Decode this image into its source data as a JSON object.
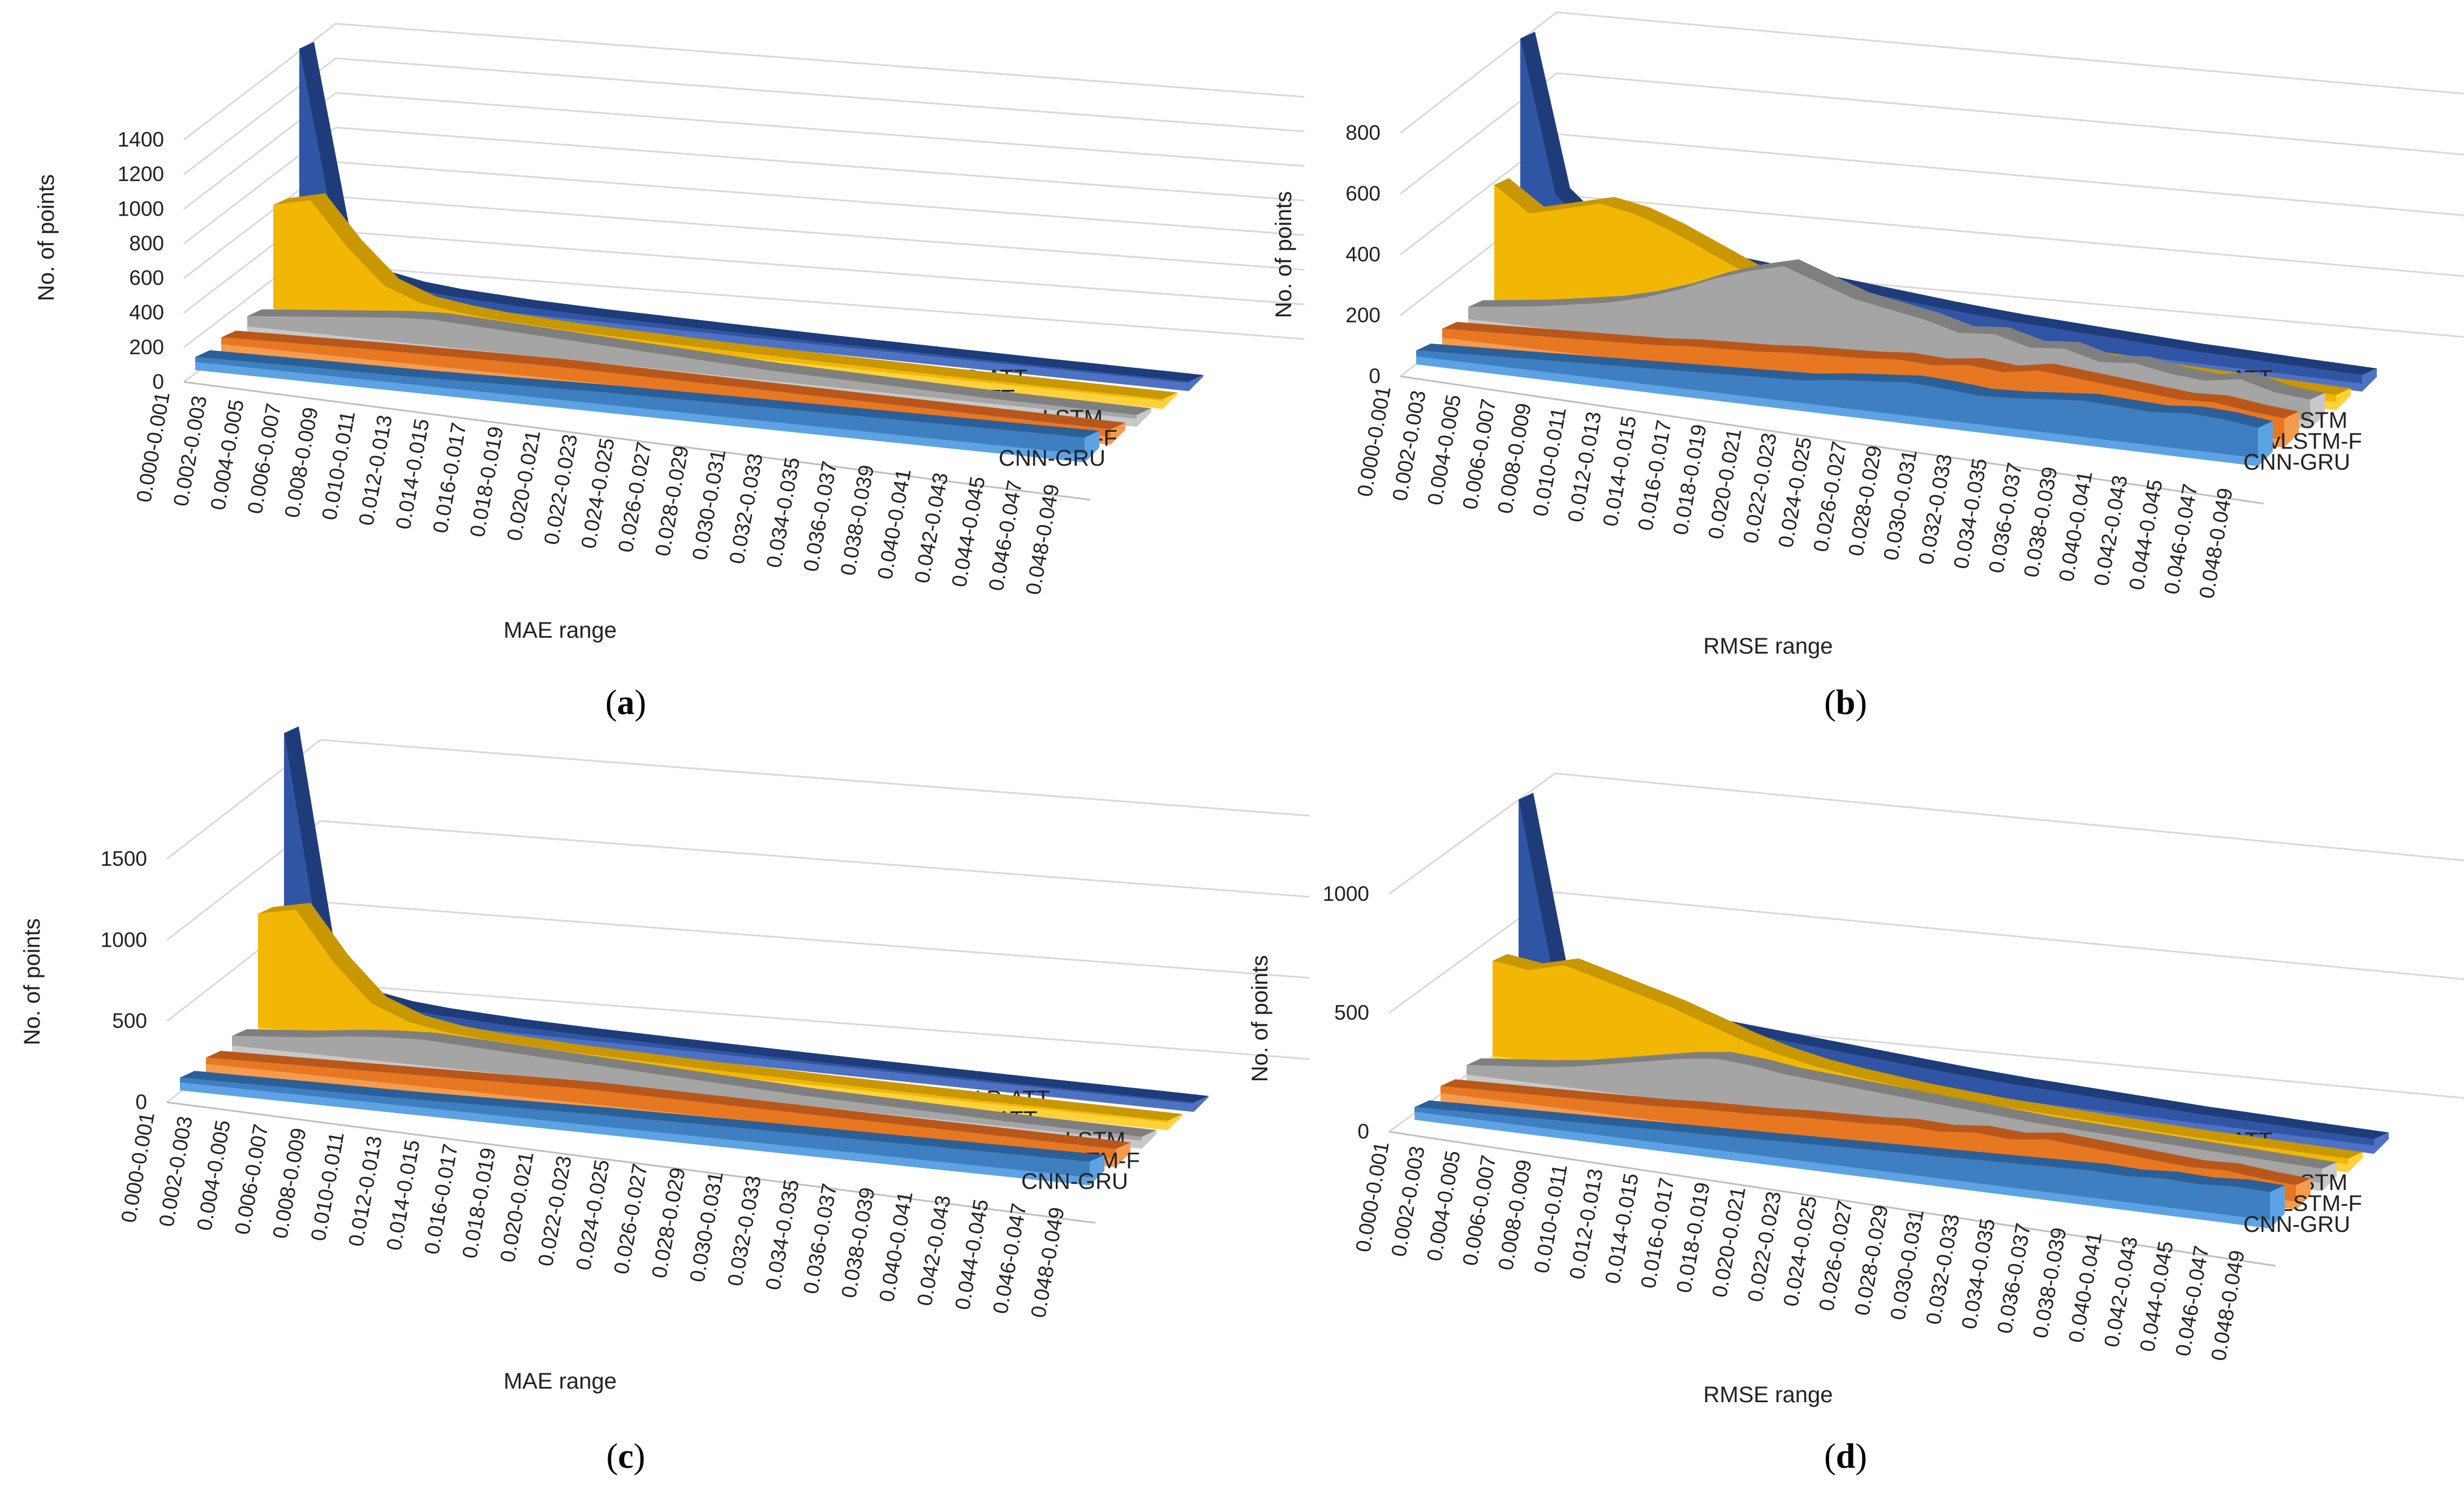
{
  "series_colors": {
    "W-P-ATT": {
      "base": "#2f55a4",
      "dark": "#1f3c7a",
      "light": "#4d72c4"
    },
    "P-ATT": {
      "base": "#f2b705",
      "dark": "#c99700",
      "light": "#ffd23a"
    },
    "A-ConvLSTM": {
      "base": "#a5a5a5",
      "dark": "#7f7f7f",
      "light": "#c8c8c8"
    },
    "ConvLSTM-F": {
      "base": "#e87722",
      "dark": "#b9571a",
      "light": "#f59b4e"
    },
    "CNN-GRU": {
      "base": "#3d7fc1",
      "dark": "#2b5f98",
      "light": "#5da3e4"
    }
  },
  "chart_data": [
    {
      "type": "area",
      "panel": "(a)",
      "panel_letter": "a",
      "title": "",
      "xlabel": "MAE range",
      "ylabel": "No. of points",
      "ylim": [
        0,
        1400
      ],
      "yticks": [
        "1400",
        "1200",
        "1000",
        "800",
        "600",
        "400",
        "200",
        "0"
      ],
      "yticks_values": [
        1400,
        1200,
        1000,
        800,
        600,
        400,
        200,
        0
      ],
      "categories": [
        "0.000-0.001",
        "0.002-0.003",
        "0.004-0.005",
        "0.006-0.007",
        "0.008-0.009",
        "0.010-0.011",
        "0.012-0.013",
        "0.014-0.015",
        "0.016-0.017",
        "0.018-0.019",
        "0.020-0.021",
        "0.022-0.023",
        "0.024-0.025",
        "0.026-0.027",
        "0.028-0.029",
        "0.030-0.031",
        "0.032-0.033",
        "0.034-0.035",
        "0.036-0.037",
        "0.038-0.039",
        "0.040-0.041",
        "0.042-0.043",
        "0.044-0.045",
        "0.046-0.047",
        "0.048-0.049"
      ],
      "series": [
        {
          "name": "W-P-ATT",
          "values": [
            1400,
            300,
            120,
            80,
            60,
            50,
            40,
            35,
            30,
            28,
            25,
            22,
            20,
            18,
            16,
            15,
            14,
            13,
            12,
            11,
            10,
            10,
            9,
            9,
            8
          ]
        },
        {
          "name": "P-ATT",
          "values": [
            600,
            650,
            400,
            200,
            120,
            90,
            70,
            60,
            50,
            45,
            40,
            35,
            30,
            28,
            25,
            22,
            20,
            18,
            16,
            15,
            14,
            13,
            12,
            11,
            10
          ]
        },
        {
          "name": "A-ConvLSTM",
          "values": [
            60,
            80,
            100,
            120,
            140,
            150,
            140,
            130,
            120,
            110,
            100,
            90,
            80,
            70,
            60,
            55,
            50,
            45,
            40,
            35,
            30,
            28,
            26,
            24,
            22
          ]
        },
        {
          "name": "ConvLSTM-F",
          "values": [
            40,
            45,
            50,
            55,
            60,
            62,
            65,
            68,
            70,
            72,
            70,
            68,
            66,
            64,
            62,
            60,
            58,
            56,
            54,
            52,
            50,
            48,
            46,
            44,
            42
          ]
        },
        {
          "name": "CNN-GRU",
          "values": [
            30,
            32,
            35,
            38,
            40,
            42,
            45,
            50,
            55,
            60,
            65,
            70,
            72,
            75,
            78,
            80,
            82,
            84,
            86,
            88,
            90,
            92,
            94,
            96,
            98
          ]
        }
      ]
    },
    {
      "type": "area",
      "panel": "(b)",
      "panel_letter": "b",
      "title": "",
      "xlabel": "RMSE range",
      "ylabel": "No. of points",
      "ylim": [
        0,
        800
      ],
      "yticks": [
        "800",
        "600",
        "400",
        "200",
        "0"
      ],
      "yticks_values": [
        800,
        600,
        400,
        200,
        0
      ],
      "categories": [
        "0.000-0.001",
        "0.002-0.003",
        "0.004-0.005",
        "0.006-0.007",
        "0.008-0.009",
        "0.010-0.011",
        "0.012-0.013",
        "0.014-0.015",
        "0.016-0.017",
        "0.018-0.019",
        "0.020-0.021",
        "0.022-0.023",
        "0.024-0.025",
        "0.026-0.027",
        "0.028-0.029",
        "0.030-0.031",
        "0.032-0.033",
        "0.034-0.035",
        "0.036-0.037",
        "0.038-0.039",
        "0.040-0.041",
        "0.042-0.043",
        "0.044-0.045",
        "0.046-0.047",
        "0.048-0.049"
      ],
      "series": [
        {
          "name": "W-P-ATT",
          "values": [
            800,
            300,
            200,
            180,
            160,
            150,
            140,
            130,
            120,
            110,
            100,
            90,
            80,
            72,
            65,
            60,
            55,
            50,
            45,
            40,
            38,
            35,
            32,
            30,
            28
          ]
        },
        {
          "name": "P-ATT",
          "values": [
            380,
            300,
            330,
            360,
            340,
            300,
            250,
            200,
            160,
            130,
            110,
            95,
            80,
            70,
            60,
            55,
            50,
            45,
            40,
            35,
            32,
            30,
            28,
            26,
            24
          ]
        },
        {
          "name": "A-ConvLSTM",
          "values": [
            40,
            55,
            70,
            90,
            110,
            140,
            180,
            230,
            270,
            300,
            260,
            220,
            200,
            180,
            150,
            160,
            130,
            140,
            110,
            120,
            100,
            90,
            110,
            80,
            70
          ]
        },
        {
          "name": "ConvLSTM-F",
          "values": [
            30,
            35,
            40,
            45,
            50,
            55,
            60,
            70,
            75,
            80,
            90,
            95,
            100,
            110,
            105,
            120,
            110,
            130,
            120,
            110,
            100,
            90,
            95,
            80,
            70
          ]
        },
        {
          "name": "CNN-GRU",
          "values": [
            20,
            25,
            30,
            35,
            40,
            45,
            50,
            55,
            60,
            65,
            70,
            75,
            90,
            100,
            110,
            105,
            95,
            100,
            110,
            120,
            115,
            110,
            120,
            115,
            100
          ]
        }
      ]
    },
    {
      "type": "area",
      "panel": "(c)",
      "panel_letter": "c",
      "title": "",
      "xlabel": "MAE range",
      "ylabel": "No. of points",
      "ylim": [
        0,
        1500
      ],
      "yticks": [
        "1500",
        "1000",
        "500",
        "0"
      ],
      "yticks_values": [
        1500,
        1000,
        500,
        0
      ],
      "categories": [
        "0.000-0.001",
        "0.002-0.003",
        "0.004-0.005",
        "0.006-0.007",
        "0.008-0.009",
        "0.010-0.011",
        "0.012-0.013",
        "0.014-0.015",
        "0.016-0.017",
        "0.018-0.019",
        "0.020-0.021",
        "0.022-0.023",
        "0.024-0.025",
        "0.026-0.027",
        "0.028-0.029",
        "0.030-0.031",
        "0.032-0.033",
        "0.034-0.035",
        "0.036-0.037",
        "0.038-0.039",
        "0.040-0.041",
        "0.042-0.043",
        "0.044-0.045",
        "0.046-0.047",
        "0.048-0.049"
      ],
      "series": [
        {
          "name": "W-P-ATT",
          "values": [
            1700,
            300,
            120,
            80,
            60,
            50,
            40,
            35,
            30,
            28,
            25,
            22,
            20,
            18,
            16,
            15,
            14,
            13,
            12,
            11,
            10,
            10,
            9,
            9,
            8
          ]
        },
        {
          "name": "P-ATT",
          "values": [
            700,
            750,
            450,
            220,
            130,
            90,
            70,
            60,
            50,
            45,
            40,
            35,
            30,
            28,
            25,
            22,
            20,
            18,
            16,
            15,
            14,
            13,
            12,
            11,
            10
          ]
        },
        {
          "name": "A-ConvLSTM",
          "values": [
            60,
            80,
            100,
            130,
            150,
            160,
            150,
            140,
            130,
            120,
            110,
            100,
            90,
            80,
            70,
            60,
            55,
            50,
            45,
            40,
            35,
            30,
            28,
            26,
            24
          ]
        },
        {
          "name": "ConvLSTM-F",
          "values": [
            40,
            45,
            50,
            55,
            60,
            65,
            70,
            75,
            80,
            85,
            90,
            88,
            86,
            84,
            82,
            80,
            78,
            76,
            74,
            72,
            70,
            68,
            66,
            64,
            62
          ]
        },
        {
          "name": "CNN-GRU",
          "values": [
            30,
            32,
            35,
            38,
            40,
            42,
            45,
            50,
            55,
            60,
            65,
            70,
            72,
            75,
            78,
            80,
            82,
            84,
            86,
            88,
            90,
            92,
            94,
            96,
            98
          ]
        }
      ]
    },
    {
      "type": "area",
      "panel": "(d)",
      "panel_letter": "d",
      "title": "",
      "xlabel": "RMSE range",
      "ylabel": "No. of points",
      "ylim": [
        0,
        1000
      ],
      "yticks": [
        "1000",
        "500",
        "0"
      ],
      "yticks_values": [
        1000,
        500,
        0
      ],
      "categories": [
        "0.000-0.001",
        "0.002-0.003",
        "0.004-0.005",
        "0.006-0.007",
        "0.008-0.009",
        "0.010-0.011",
        "0.012-0.013",
        "0.014-0.015",
        "0.016-0.017",
        "0.018-0.019",
        "0.020-0.021",
        "0.022-0.023",
        "0.024-0.025",
        "0.026-0.027",
        "0.028-0.029",
        "0.030-0.031",
        "0.032-0.033",
        "0.034-0.035",
        "0.036-0.037",
        "0.038-0.039",
        "0.040-0.041",
        "0.042-0.043",
        "0.044-0.045",
        "0.046-0.047",
        "0.048-0.049"
      ],
      "series": [
        {
          "name": "W-P-ATT",
          "values": [
            1000,
            250,
            200,
            180,
            160,
            150,
            140,
            130,
            120,
            110,
            100,
            90,
            80,
            72,
            65,
            60,
            55,
            50,
            45,
            40,
            38,
            35,
            32,
            30,
            28
          ]
        },
        {
          "name": "P-ATT",
          "values": [
            400,
            380,
            420,
            380,
            340,
            300,
            250,
            200,
            160,
            130,
            110,
            95,
            80,
            70,
            60,
            55,
            50,
            45,
            40,
            35,
            32,
            30,
            28,
            26,
            24
          ]
        },
        {
          "name": "A-ConvLSTM",
          "values": [
            40,
            55,
            70,
            90,
            120,
            150,
            180,
            200,
            190,
            170,
            160,
            150,
            140,
            130,
            120,
            110,
            100,
            95,
            90,
            85,
            80,
            75,
            70,
            65,
            60
          ]
        },
        {
          "name": "ConvLSTM-F",
          "values": [
            30,
            35,
            40,
            45,
            50,
            55,
            60,
            70,
            75,
            80,
            90,
            95,
            100,
            110,
            105,
            120,
            110,
            130,
            120,
            110,
            100,
            90,
            95,
            80,
            70
          ]
        },
        {
          "name": "CNN-GRU",
          "values": [
            20,
            25,
            30,
            35,
            40,
            45,
            50,
            55,
            60,
            65,
            70,
            75,
            80,
            85,
            90,
            95,
            100,
            105,
            110,
            115,
            110,
            120,
            115,
            125,
            120
          ]
        }
      ]
    }
  ]
}
